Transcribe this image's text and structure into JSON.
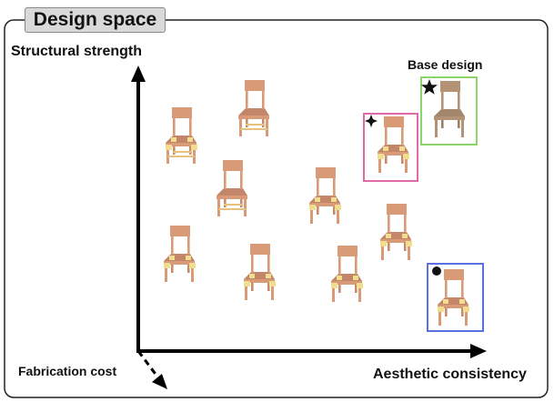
{
  "title": "Design space",
  "axes": {
    "y_label": "Structural strength",
    "x_label": "Aesthetic consistency",
    "z_label": "Fabrication cost"
  },
  "annotations": {
    "base_design_label": "Base design"
  },
  "colors": {
    "base_box": "#8fd46a",
    "star_box": "#e06aa8",
    "dot_box": "#5a6fe0",
    "chair_wood": "#d99a78",
    "chair_joint": "#f0de8e",
    "base_chair": "#b39275"
  },
  "markers": {
    "base": "filled-star",
    "pink": "four-point-star",
    "blue": "filled-circle"
  }
}
